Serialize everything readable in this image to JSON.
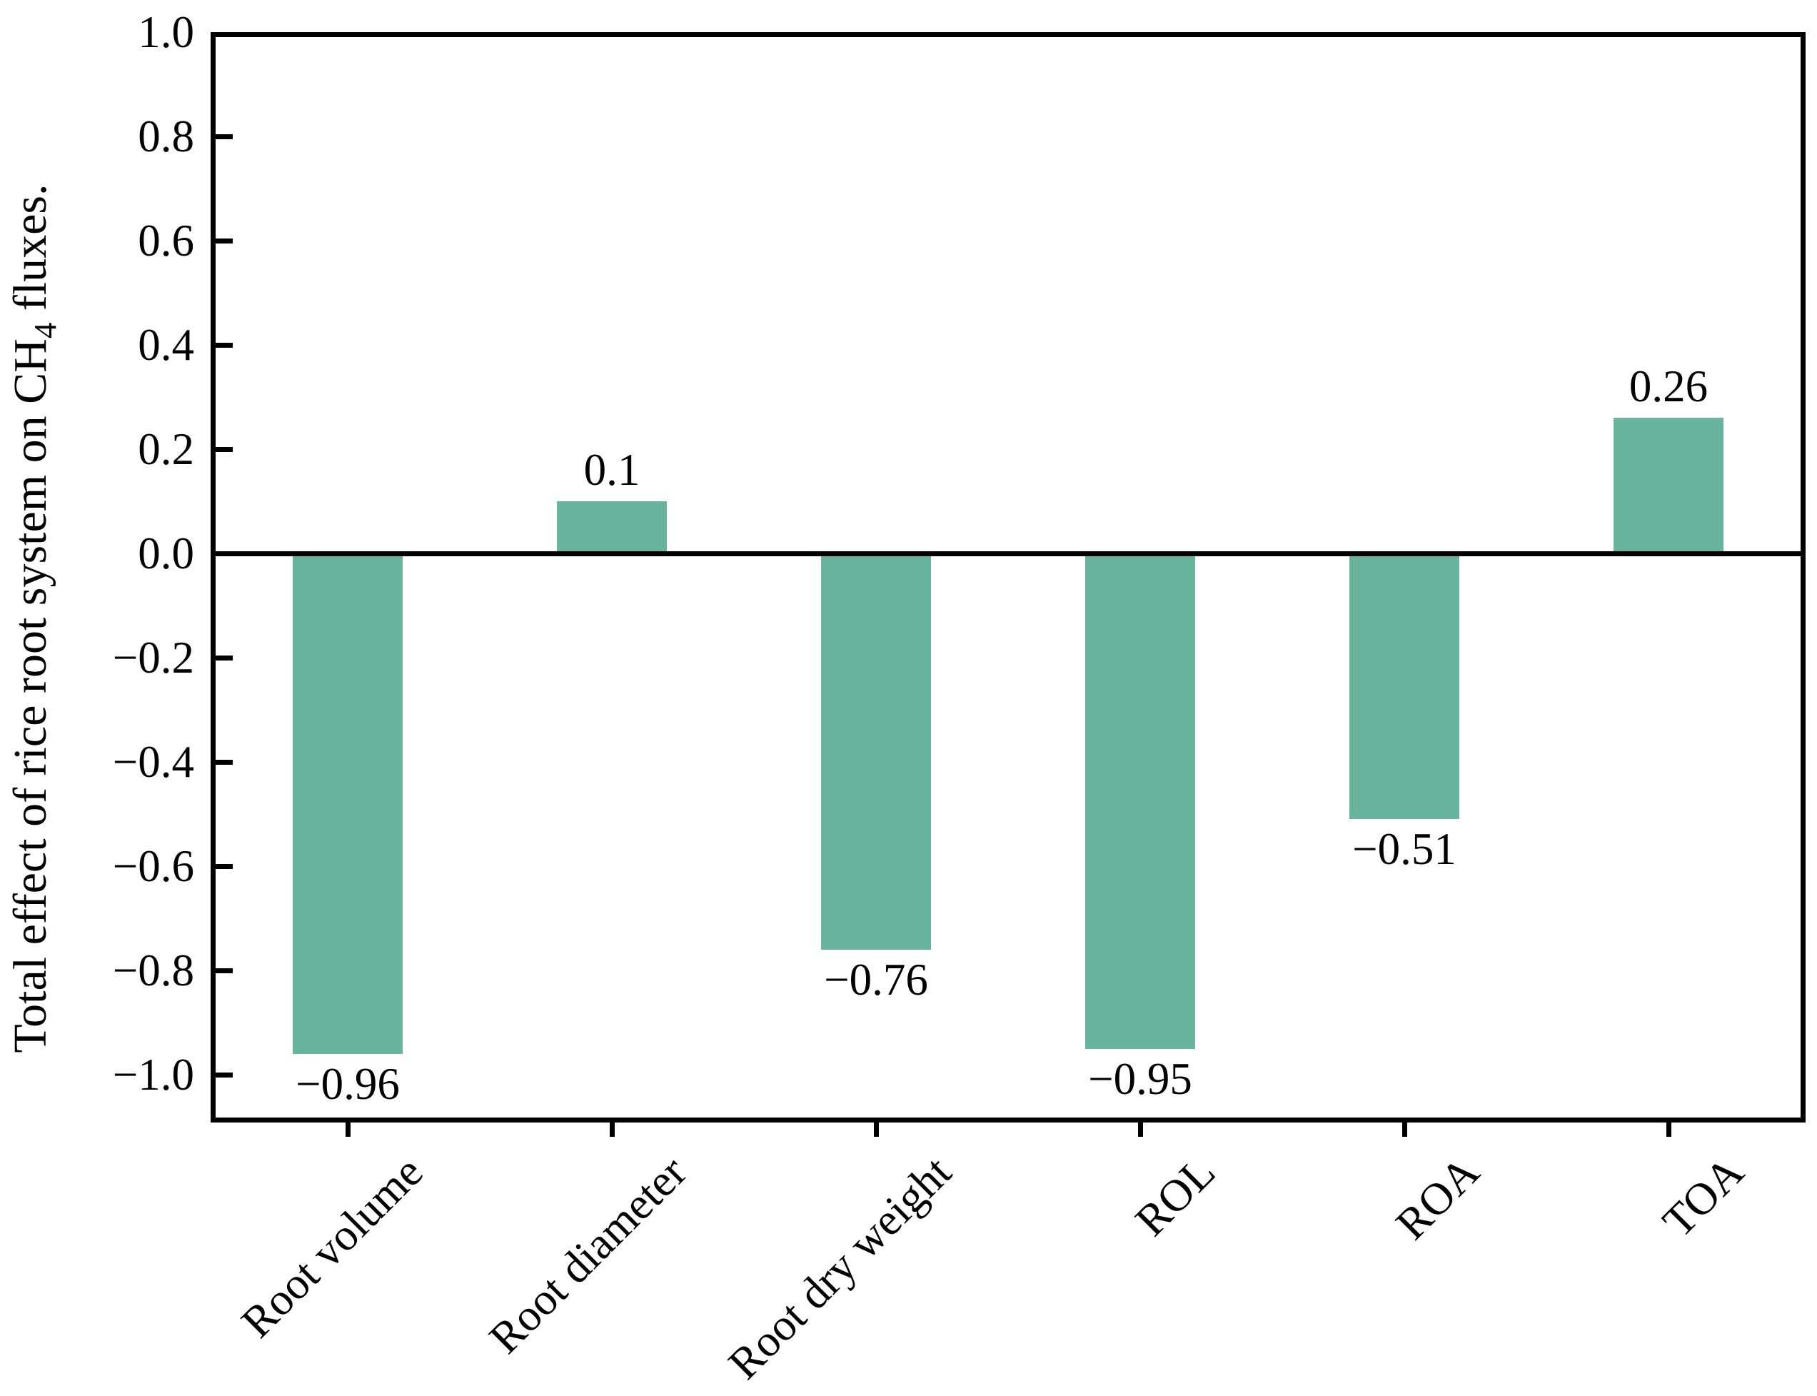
{
  "figure": {
    "background": "#ffffff",
    "text_color": "#000000",
    "axis_color": "#000000"
  },
  "chart_data": {
    "type": "bar",
    "title": "",
    "categories": [
      "Root volume",
      "Root diameter",
      "Root dry weight",
      "ROL",
      "ROA",
      "TOA"
    ],
    "values": [
      -0.96,
      0.1,
      -0.76,
      -0.95,
      -0.51,
      0.26
    ],
    "bar_labels": [
      "−0.96",
      "0.1",
      "−0.76",
      "−0.95",
      "−0.51",
      "0.26"
    ],
    "bar_color": "#69b49c",
    "ylabel": {
      "prefix": "Total effect of rice root system on CH",
      "subscript": "4",
      "suffix": " fluxes.",
      "full_text": "Total effect of rice root system on CH4 fluxes."
    },
    "xlabel": "",
    "yticks": {
      "values": [
        1.0,
        0.8,
        0.6,
        0.4,
        0.2,
        0.0,
        -0.2,
        -0.4,
        -0.6,
        -0.8,
        -1.0
      ],
      "labels": [
        "1.0",
        "0.8",
        "0.6",
        "0.4",
        "0.2",
        "0.0",
        "−0.2",
        "−0.4",
        "−0.6",
        "−0.8",
        "−1.0"
      ]
    },
    "ylim": [
      -1.09,
      1.0
    ],
    "grid": false,
    "legend": null,
    "xtick_label_rotation_deg": 45,
    "ytick_direction": "in",
    "xtick_direction": "out"
  }
}
